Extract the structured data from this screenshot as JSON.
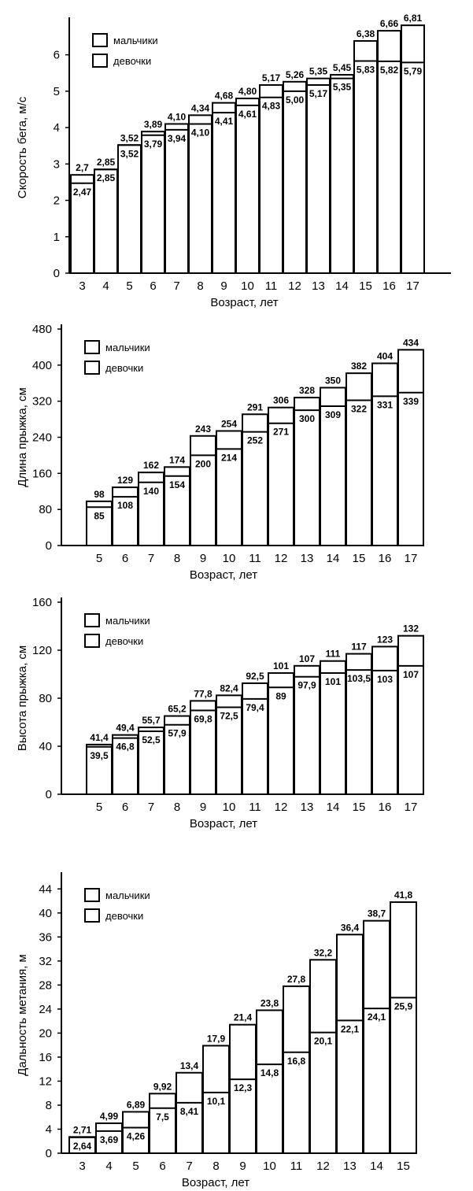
{
  "chart_data": [
    {
      "type": "bar",
      "ylabel": "Скорость бега, м/с",
      "xlabel": "Возраст, лет",
      "yticks": [
        0,
        1,
        2,
        3,
        4,
        5,
        6
      ],
      "ylim": [
        0,
        6.9
      ],
      "categories": [
        "3",
        "4",
        "5",
        "6",
        "7",
        "8",
        "9",
        "10",
        "11",
        "12",
        "13",
        "14",
        "15",
        "16",
        "17"
      ],
      "series": [
        {
          "name": "мальчики",
          "values": [
            2.7,
            2.85,
            3.52,
            3.89,
            4.1,
            4.34,
            4.68,
            4.8,
            5.17,
            5.26,
            5.35,
            5.45,
            6.38,
            6.66,
            6.81
          ],
          "labels": [
            "2,7",
            "2,85",
            "3,52",
            "3,89",
            "4,10",
            "4,34",
            "4,68",
            "4,80",
            "5,17",
            "5,26",
            "5,35",
            "5,45",
            "6,38",
            "6,66",
            "6,81"
          ]
        },
        {
          "name": "девочки",
          "values": [
            2.47,
            2.85,
            3.52,
            3.79,
            3.94,
            4.1,
            4.41,
            4.61,
            4.83,
            5.0,
            5.17,
            5.35,
            5.83,
            5.82,
            5.79
          ],
          "labels": [
            "2,47",
            "2,85",
            "3,52",
            "3,79",
            "3,94",
            "4,10",
            "4,41",
            "4,61",
            "4,83",
            "5,00",
            "5,17",
            "5,35",
            "5,83",
            "5,82",
            "5,79"
          ]
        }
      ],
      "legend": "top-left",
      "grid": false
    },
    {
      "type": "bar",
      "ylabel": "Длина прыжка, см",
      "xlabel": "Возраст, лет",
      "yticks": [
        0,
        80,
        160,
        240,
        320,
        400,
        480
      ],
      "ylim": [
        0,
        480
      ],
      "categories": [
        "5",
        "6",
        "7",
        "8",
        "9",
        "10",
        "11",
        "12",
        "13",
        "14",
        "15",
        "16",
        "17"
      ],
      "series": [
        {
          "name": "мальчики",
          "values": [
            98,
            129,
            162,
            174,
            243,
            254,
            291,
            306,
            328,
            350,
            382,
            404,
            434
          ],
          "labels": [
            "98",
            "129",
            "162",
            "174",
            "243",
            "254",
            "291",
            "306",
            "328",
            "350",
            "382",
            "404",
            "434"
          ]
        },
        {
          "name": "девочки",
          "values": [
            85,
            108,
            140,
            154,
            200,
            214,
            252,
            271,
            300,
            309,
            322,
            331,
            339
          ],
          "labels": [
            "85",
            "108",
            "140",
            "154",
            "200",
            "214",
            "252",
            "271",
            "300",
            "309",
            "322",
            "331",
            "339"
          ]
        }
      ],
      "legend": "top-left",
      "grid": false
    },
    {
      "type": "bar",
      "ylabel": "Высота прыжка, см",
      "xlabel": "Возраст, лет",
      "yticks": [
        0,
        40,
        80,
        120,
        160
      ],
      "ylim": [
        0,
        160
      ],
      "categories": [
        "5",
        "6",
        "7",
        "8",
        "9",
        "10",
        "11",
        "12",
        "13",
        "14",
        "15",
        "16",
        "17"
      ],
      "series": [
        {
          "name": "мальчики",
          "values": [
            41.4,
            49.4,
            55.7,
            65.2,
            77.8,
            82.4,
            92.5,
            101,
            107,
            111,
            117,
            123,
            132
          ],
          "labels": [
            "41,4",
            "49,4",
            "55,7",
            "65,2",
            "77,8",
            "82,4",
            "92,5",
            "101",
            "107",
            "111",
            "117",
            "123",
            "132"
          ]
        },
        {
          "name": "девочки",
          "values": [
            39.5,
            46.8,
            52.5,
            57.9,
            69.8,
            72.5,
            79.4,
            89,
            97.9,
            101,
            103.5,
            103,
            107
          ],
          "labels": [
            "39,5",
            "46,8",
            "52,5",
            "57,9",
            "69,8",
            "72,5",
            "79,4",
            "89",
            "97,9",
            "101",
            "103,5",
            "103",
            "107"
          ]
        }
      ],
      "legend": "top-left",
      "grid": false
    },
    {
      "type": "bar",
      "ylabel": "Дальность метания, м",
      "xlabel": "Возраст, лет",
      "yticks": [
        0,
        4,
        8,
        12,
        16,
        20,
        24,
        28,
        32,
        36,
        40,
        44
      ],
      "ylim": [
        0,
        46
      ],
      "categories": [
        "3",
        "4",
        "5",
        "6",
        "7",
        "8",
        "9",
        "10",
        "11",
        "12",
        "13",
        "14",
        "15"
      ],
      "series": [
        {
          "name": "мальчики",
          "values": [
            2.71,
            4.99,
            6.89,
            9.92,
            13.4,
            17.9,
            21.4,
            23.8,
            27.8,
            32.2,
            36.4,
            38.7,
            41.8
          ],
          "labels": [
            "2,71",
            "4,99",
            "6,89",
            "9,92",
            "13,4",
            "17,9",
            "21,4",
            "23,8",
            "27,8",
            "32,2",
            "36,4",
            "38,7",
            "41,8"
          ]
        },
        {
          "name": "девочки",
          "values": [
            2.64,
            3.69,
            4.26,
            7.5,
            8.41,
            10.1,
            12.3,
            14.8,
            16.8,
            20.1,
            22.1,
            24.1,
            25.9
          ],
          "labels": [
            "2,64",
            "3,69",
            "4,26",
            "7,5",
            "8,41",
            "10,1",
            "12,3",
            "14,8",
            "16,8",
            "20,1",
            "22,1",
            "24,1",
            "25,9"
          ]
        }
      ],
      "legend": "top-left",
      "grid": false
    }
  ]
}
